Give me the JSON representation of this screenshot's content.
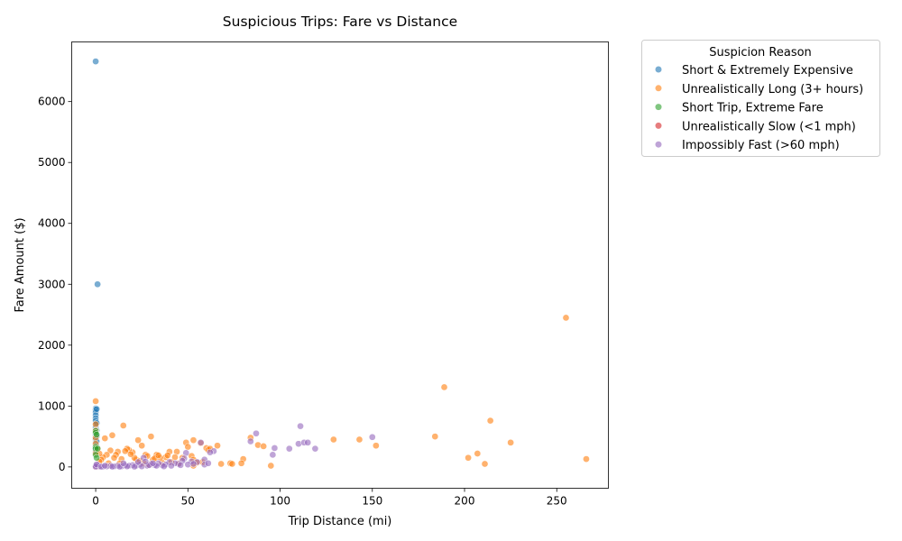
{
  "chart_data": {
    "type": "scatter",
    "title": "Suspicious Trips: Fare vs Distance",
    "xlabel": "Trip Distance (mi)",
    "ylabel": "Fare Amount ($)",
    "xlim": [
      -13,
      278
    ],
    "ylim": [
      -350,
      6980
    ],
    "xticks": [
      0,
      50,
      100,
      150,
      200,
      250
    ],
    "yticks": [
      0,
      1000,
      2000,
      3000,
      4000,
      5000,
      6000
    ],
    "grid": false,
    "legend": {
      "title": "Suspicion Reason",
      "placement": "outside-right"
    },
    "series": [
      {
        "name": "Short & Extremely Expensive",
        "color": "#1f77b4",
        "points": [
          [
            0,
            6660
          ],
          [
            1,
            3000
          ],
          [
            0,
            960
          ],
          [
            0,
            940
          ],
          [
            0,
            900
          ],
          [
            0,
            850
          ],
          [
            0,
            800
          ],
          [
            0,
            760
          ],
          [
            0,
            700
          ],
          [
            0,
            650
          ],
          [
            0,
            600
          ],
          [
            0,
            560
          ],
          [
            0,
            520
          ],
          [
            0,
            480
          ],
          [
            0,
            450
          ],
          [
            0,
            400
          ],
          [
            0,
            380
          ],
          [
            0,
            350
          ],
          [
            0,
            320
          ],
          [
            0,
            300
          ],
          [
            0,
            280
          ],
          [
            0,
            250
          ],
          [
            0.5,
            950
          ],
          [
            0.5,
            720
          ],
          [
            0.5,
            600
          ],
          [
            0.5,
            500
          ],
          [
            0.5,
            420
          ],
          [
            0.3,
            360
          ],
          [
            0.2,
            270
          ],
          [
            0.6,
            330
          ]
        ]
      },
      {
        "name": "Unrealistically Long (3+ hours)",
        "color": "#ff7f0e",
        "points": [
          [
            255,
            2450
          ],
          [
            189,
            1310
          ],
          [
            214,
            760
          ],
          [
            184,
            500
          ],
          [
            143,
            450
          ],
          [
            129,
            450
          ],
          [
            152,
            350
          ],
          [
            225,
            400
          ],
          [
            207,
            220
          ],
          [
            202,
            150
          ],
          [
            211,
            50
          ],
          [
            266,
            130
          ],
          [
            95,
            20
          ],
          [
            84,
            480
          ],
          [
            88,
            360
          ],
          [
            91,
            340
          ],
          [
            80,
            130
          ],
          [
            79,
            60
          ],
          [
            73,
            60
          ],
          [
            74,
            50
          ],
          [
            68,
            50
          ],
          [
            66,
            350
          ],
          [
            60,
            310
          ],
          [
            61,
            280
          ],
          [
            57,
            390
          ],
          [
            53,
            440
          ],
          [
            49,
            400
          ],
          [
            50,
            330
          ],
          [
            52,
            180
          ],
          [
            53,
            120
          ],
          [
            55,
            70
          ],
          [
            53,
            20
          ],
          [
            44,
            250
          ],
          [
            43,
            160
          ],
          [
            40,
            250
          ],
          [
            38,
            160
          ],
          [
            36,
            70
          ],
          [
            33,
            200
          ],
          [
            31,
            120
          ],
          [
            30,
            500
          ],
          [
            27,
            200
          ],
          [
            25,
            350
          ],
          [
            23,
            440
          ],
          [
            22,
            120
          ],
          [
            20,
            240
          ],
          [
            18,
            280
          ],
          [
            17,
            300
          ],
          [
            16,
            260
          ],
          [
            15,
            680
          ],
          [
            14,
            130
          ],
          [
            12,
            250
          ],
          [
            11,
            200
          ],
          [
            10,
            150
          ],
          [
            9,
            520
          ],
          [
            8,
            270
          ],
          [
            6,
            200
          ],
          [
            5,
            470
          ],
          [
            4,
            160
          ],
          [
            3,
            120
          ],
          [
            2,
            90
          ],
          [
            1,
            300
          ],
          [
            0,
            1080
          ],
          [
            0,
            700
          ],
          [
            0,
            600
          ],
          [
            0,
            480
          ],
          [
            0,
            380
          ],
          [
            0,
            230
          ],
          [
            47,
            150
          ],
          [
            45,
            60
          ],
          [
            41,
            80
          ],
          [
            35,
            150
          ],
          [
            32,
            140
          ],
          [
            28,
            180
          ],
          [
            26,
            60
          ],
          [
            21,
            150
          ],
          [
            19,
            210
          ],
          [
            13,
            60
          ],
          [
            24,
            100
          ],
          [
            29,
            40
          ],
          [
            34,
            190
          ],
          [
            39,
            190
          ],
          [
            58,
            80
          ],
          [
            62,
            300
          ],
          [
            7,
            60
          ],
          [
            2,
            220
          ]
        ]
      },
      {
        "name": "Short Trip, Extreme Fare",
        "color": "#2ca02c",
        "points": [
          [
            0,
            590
          ],
          [
            0,
            560
          ],
          [
            0.5,
            530
          ],
          [
            0,
            330
          ],
          [
            0,
            300
          ],
          [
            1,
            300
          ],
          [
            0,
            200
          ],
          [
            0.5,
            150
          ]
        ]
      },
      {
        "name": "Unrealistically Slow (<1 mph)",
        "color": "#d62728",
        "points": [
          [
            0,
            5
          ],
          [
            0.5,
            8
          ],
          [
            1,
            10
          ]
        ]
      },
      {
        "name": "Impossibly Fast (>60 mph)",
        "color": "#9467bd",
        "points": [
          [
            111,
            670
          ],
          [
            87,
            550
          ],
          [
            150,
            490
          ],
          [
            110,
            380
          ],
          [
            113,
            400
          ],
          [
            115,
            400
          ],
          [
            119,
            300
          ],
          [
            105,
            300
          ],
          [
            97,
            310
          ],
          [
            96,
            200
          ],
          [
            84,
            420
          ],
          [
            64,
            260
          ],
          [
            62,
            240
          ],
          [
            57,
            400
          ],
          [
            59,
            120
          ],
          [
            59,
            40
          ],
          [
            55,
            80
          ],
          [
            52,
            90
          ],
          [
            49,
            230
          ],
          [
            48,
            140
          ],
          [
            47,
            100
          ],
          [
            45,
            50
          ],
          [
            43,
            60
          ],
          [
            40,
            80
          ],
          [
            38,
            40
          ],
          [
            36,
            30
          ],
          [
            34,
            60
          ],
          [
            32,
            30
          ],
          [
            30,
            50
          ],
          [
            28,
            20
          ],
          [
            26,
            150
          ],
          [
            24,
            40
          ],
          [
            22,
            20
          ],
          [
            20,
            30
          ],
          [
            18,
            20
          ],
          [
            16,
            30
          ],
          [
            14,
            10
          ],
          [
            12,
            20
          ],
          [
            10,
            10
          ],
          [
            8,
            20
          ],
          [
            6,
            10
          ],
          [
            4,
            5
          ],
          [
            2,
            10
          ],
          [
            1,
            30
          ],
          [
            0,
            20
          ],
          [
            0,
            5
          ],
          [
            0.5,
            40
          ],
          [
            3,
            5
          ],
          [
            5,
            20
          ],
          [
            9,
            5
          ],
          [
            13,
            5
          ],
          [
            17,
            10
          ],
          [
            21,
            5
          ],
          [
            25,
            10
          ],
          [
            29,
            30
          ],
          [
            33,
            20
          ],
          [
            37,
            10
          ],
          [
            41,
            20
          ],
          [
            46,
            30
          ],
          [
            50,
            40
          ],
          [
            53,
            50
          ],
          [
            61,
            60
          ],
          [
            15,
            60
          ],
          [
            23,
            80
          ],
          [
            27,
            90
          ],
          [
            31,
            60
          ]
        ]
      }
    ]
  }
}
